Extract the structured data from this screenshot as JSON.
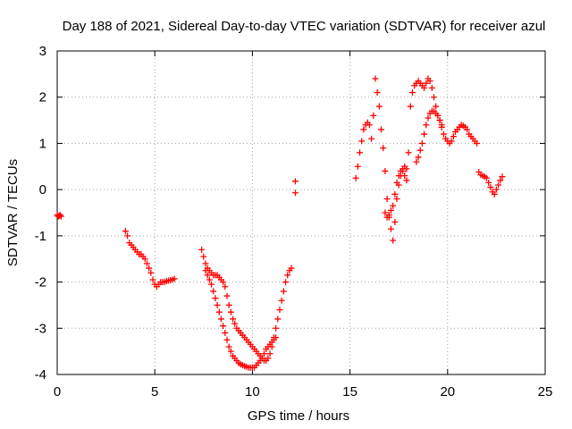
{
  "chart_data": {
    "type": "scatter",
    "title": "Day 188 of 2021, Sidereal Day-to-day VTEC variation (SDTVAR) for receiver azul",
    "xlabel": "GPS time / hours",
    "ylabel": "SDTVAR / TECUs",
    "xlim": [
      0,
      25
    ],
    "ylim": [
      -4,
      3
    ],
    "xticks": [
      "0",
      "5",
      "10",
      "15",
      "20",
      "25"
    ],
    "yticks": [
      "-4",
      "-3",
      "-2",
      "-1",
      "0",
      "1",
      "2",
      "3"
    ],
    "grid": true,
    "marker": "+",
    "color": "#ff0000",
    "segments": [
      {
        "x": [
          0.0,
          0.05,
          0.1,
          0.15,
          0.2
        ],
        "y": [
          -0.55,
          -0.58,
          -0.57,
          -0.55,
          -0.58
        ]
      },
      {
        "x": [
          3.5,
          3.6,
          3.7,
          3.8,
          3.9,
          4.0,
          4.1,
          4.2,
          4.3,
          4.4,
          4.5,
          4.6,
          4.7,
          4.8,
          4.9,
          5.0,
          5.1,
          5.2,
          5.3,
          5.4,
          5.5,
          5.6,
          5.7,
          5.8,
          5.9,
          6.0
        ],
        "y": [
          -0.9,
          -1.0,
          -1.15,
          -1.2,
          -1.25,
          -1.3,
          -1.35,
          -1.4,
          -1.4,
          -1.45,
          -1.5,
          -1.6,
          -1.7,
          -1.8,
          -1.95,
          -2.05,
          -2.1,
          -2.05,
          -2.0,
          -2.0,
          -2.0,
          -1.98,
          -1.97,
          -1.96,
          -1.95,
          -1.93
        ]
      },
      {
        "x": [
          7.4,
          7.5,
          7.6,
          7.7,
          7.8,
          7.9,
          8.0,
          8.1,
          8.2,
          8.3,
          8.4,
          8.5,
          8.6,
          8.7,
          8.8,
          8.9,
          9.0,
          9.1,
          9.2,
          9.3,
          9.4,
          9.5,
          9.6,
          9.7,
          9.8,
          9.9,
          10.0,
          10.1,
          10.2,
          10.3,
          10.4,
          10.5,
          10.6,
          10.7,
          10.8,
          10.9,
          11.0,
          11.1,
          11.2,
          11.3,
          11.4,
          11.5,
          11.6,
          11.7,
          11.8,
          11.9,
          12.0
        ],
        "y": [
          -1.3,
          -1.45,
          -1.6,
          -1.7,
          -1.75,
          -1.8,
          -1.85,
          -1.85,
          -1.85,
          -1.9,
          -1.95,
          -2.0,
          -2.1,
          -2.3,
          -2.5,
          -2.65,
          -2.8,
          -2.9,
          -3.0,
          -3.05,
          -3.1,
          -3.15,
          -3.2,
          -3.25,
          -3.3,
          -3.35,
          -3.4,
          -3.45,
          -3.5,
          -3.55,
          -3.6,
          -3.65,
          -3.7,
          -3.7,
          -3.65,
          -3.55,
          -3.4,
          -3.2,
          -3.0,
          -2.8,
          -2.6,
          -2.4,
          -2.2,
          -2.0,
          -1.85,
          -1.75,
          -1.7
        ]
      },
      {
        "x": [
          7.6,
          7.7,
          7.8,
          7.9,
          8.0,
          8.1,
          8.2,
          8.3,
          8.4,
          8.5,
          8.6,
          8.7,
          8.8,
          8.9,
          9.0,
          9.1,
          9.2,
          9.3,
          9.4,
          9.5,
          9.6,
          9.7,
          9.8,
          9.9,
          10.0,
          10.1,
          10.2,
          10.3,
          10.4,
          10.5,
          10.6,
          10.7,
          10.8,
          10.9,
          11.0,
          11.1,
          11.2
        ],
        "y": [
          -1.75,
          -1.85,
          -1.95,
          -2.05,
          -2.2,
          -2.35,
          -2.5,
          -2.65,
          -2.8,
          -2.95,
          -3.1,
          -3.25,
          -3.4,
          -3.5,
          -3.6,
          -3.65,
          -3.7,
          -3.75,
          -3.78,
          -3.8,
          -3.82,
          -3.83,
          -3.85,
          -3.85,
          -3.85,
          -3.85,
          -3.8,
          -3.75,
          -3.7,
          -3.65,
          -3.55,
          -3.45,
          -3.4,
          -3.35,
          -3.3,
          -3.25,
          -3.2
        ]
      },
      {
        "x": [
          12.2,
          12.2
        ],
        "y": [
          0.18,
          -0.07
        ]
      },
      {
        "x": [
          15.3,
          15.4,
          15.5,
          15.6,
          15.7,
          15.8,
          15.9,
          16.0,
          16.1,
          16.2,
          16.3,
          16.4,
          16.5,
          16.6,
          16.7,
          16.8,
          16.9,
          17.0,
          17.1,
          17.2,
          17.3,
          17.4,
          17.5,
          17.6,
          17.7,
          17.8,
          17.9,
          18.0,
          18.1,
          18.2,
          18.3,
          18.4,
          18.5,
          18.6,
          18.7,
          18.8,
          18.9,
          19.0,
          19.1,
          19.2,
          19.3,
          19.4,
          19.5,
          19.6,
          19.7,
          19.8,
          19.9,
          20.0,
          20.1,
          20.2,
          20.3,
          20.4,
          20.5,
          20.6,
          20.7,
          20.8,
          20.9,
          21.0,
          21.1,
          21.2,
          21.3,
          21.4,
          21.5
        ],
        "y": [
          0.25,
          0.5,
          0.8,
          1.05,
          1.3,
          1.4,
          1.45,
          1.4,
          1.1,
          1.6,
          2.4,
          2.1,
          1.8,
          1.3,
          0.9,
          0.4,
          -0.2,
          -0.6,
          -0.85,
          -1.1,
          -0.7,
          -0.2,
          0.1,
          0.3,
          0.4,
          0.3,
          0.2,
          0.8,
          1.8,
          2.1,
          2.25,
          2.3,
          2.35,
          2.3,
          2.25,
          2.2,
          2.3,
          2.4,
          2.35,
          2.2,
          2.0,
          1.8,
          1.6,
          1.5,
          1.35,
          1.2,
          1.1,
          1.05,
          1.0,
          1.05,
          1.15,
          1.25,
          1.3,
          1.35,
          1.4,
          1.38,
          1.35,
          1.3,
          1.2,
          1.15,
          1.1,
          1.05,
          1.0
        ]
      },
      {
        "x": [
          16.8,
          16.9,
          17.0,
          17.1,
          17.2,
          17.3,
          17.4,
          17.5,
          17.6,
          17.7,
          17.8,
          17.9
        ],
        "y": [
          -0.5,
          -0.6,
          -0.55,
          -0.45,
          -0.35,
          -0.1,
          0.15,
          0.3,
          0.4,
          0.45,
          0.5,
          0.45
        ]
      },
      {
        "x": [
          18.4,
          18.5,
          18.6,
          18.7,
          18.8,
          18.9,
          19.0,
          19.1,
          19.2,
          19.3,
          19.4,
          19.5,
          19.6,
          19.7
        ],
        "y": [
          0.6,
          0.7,
          0.85,
          1.0,
          1.2,
          1.4,
          1.55,
          1.65,
          1.7,
          1.7,
          1.65,
          1.6,
          1.5,
          1.4
        ]
      },
      {
        "x": [
          21.6,
          21.7,
          21.8,
          21.9,
          22.0,
          22.1,
          22.2,
          22.3,
          22.4,
          22.5,
          22.6,
          22.7,
          22.8
        ],
        "y": [
          0.38,
          0.32,
          0.3,
          0.28,
          0.25,
          0.15,
          0.05,
          -0.05,
          -0.1,
          0.0,
          0.1,
          0.2,
          0.28
        ]
      }
    ]
  }
}
